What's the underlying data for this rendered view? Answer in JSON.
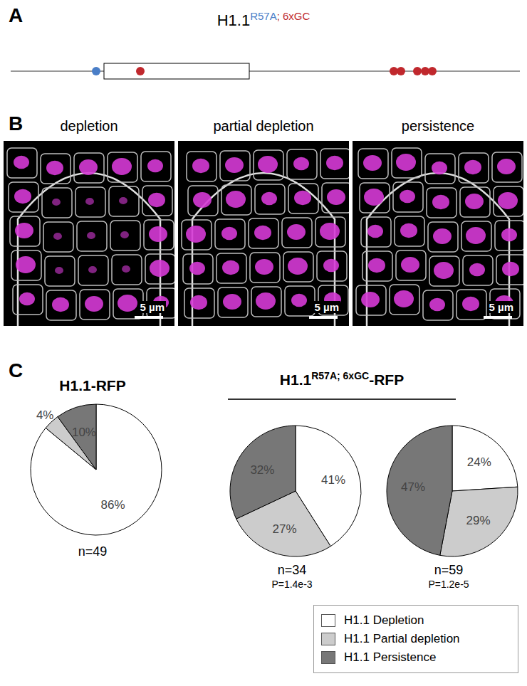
{
  "panel_a": {
    "letter": "A",
    "title": {
      "base": "H1.1",
      "superscript": [
        {
          "text": "R57A",
          "color": "#4a7ec7"
        },
        {
          "text": "; 6xGC",
          "color": "#c0282d"
        }
      ]
    }
  },
  "panel_b": {
    "letter": "B",
    "labels": [
      "depletion",
      "partial depletion",
      "persistence"
    ],
    "scale_bar": "5 µm"
  },
  "panel_c": {
    "letter": "C",
    "group_title": {
      "base": "H1.1",
      "superscript": "R57A; 6xGC",
      "suffix": "-RFP"
    }
  },
  "chart_data": [
    {
      "type": "pie",
      "title": "H1.1-RFP",
      "categories": [
        "H1.1 Depletion",
        "H1.1 Partial depletion",
        "H1.1 Persistence"
      ],
      "values": [
        86,
        4,
        10
      ],
      "value_labels": [
        "86%",
        "4%",
        "10%"
      ],
      "colors": [
        "#ffffff",
        "#cccccc",
        "#777777"
      ],
      "data_labels": true,
      "annotations": [
        "n=49"
      ],
      "legend": "lower right"
    },
    {
      "type": "pie",
      "categories": [
        "H1.1 Depletion",
        "H1.1 Partial depletion",
        "H1.1 Persistence"
      ],
      "values": [
        41,
        27,
        32
      ],
      "value_labels": [
        "41%",
        "27%",
        "32%"
      ],
      "colors": [
        "#ffffff",
        "#cccccc",
        "#777777"
      ],
      "data_labels": true,
      "annotations": [
        "n=34",
        "P=1.4e-3"
      ]
    },
    {
      "type": "pie",
      "categories": [
        "H1.1 Depletion",
        "H1.1 Partial depletion",
        "H1.1 Persistence"
      ],
      "values": [
        24,
        29,
        47
      ],
      "value_labels": [
        "24%",
        "29%",
        "47%"
      ],
      "colors": [
        "#ffffff",
        "#cccccc",
        "#777777"
      ],
      "data_labels": true,
      "annotations": [
        "n=59",
        "P=1.2e-5"
      ]
    }
  ]
}
